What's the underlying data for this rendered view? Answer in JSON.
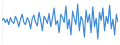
{
  "chart_data": {
    "type": "line",
    "color": "#3b8ad8",
    "tick_labels": false,
    "grid": false,
    "ylim": [
      0,
      100
    ],
    "yticks": [],
    "values": [
      55,
      60,
      50,
      58,
      45,
      62,
      52,
      48,
      65,
      55,
      40,
      58,
      70,
      50,
      45,
      62,
      55,
      35,
      60,
      68,
      50,
      42,
      75,
      55,
      30,
      65,
      58,
      48,
      72,
      40,
      60,
      85,
      45,
      55,
      25,
      70,
      62,
      50,
      90,
      35,
      58,
      20,
      78,
      60,
      45,
      95,
      30,
      65,
      55,
      15,
      80,
      50,
      70,
      25,
      88,
      40,
      60,
      10,
      75,
      55,
      85,
      30,
      65,
      48,
      92,
      35,
      58,
      20,
      70,
      50
    ]
  }
}
